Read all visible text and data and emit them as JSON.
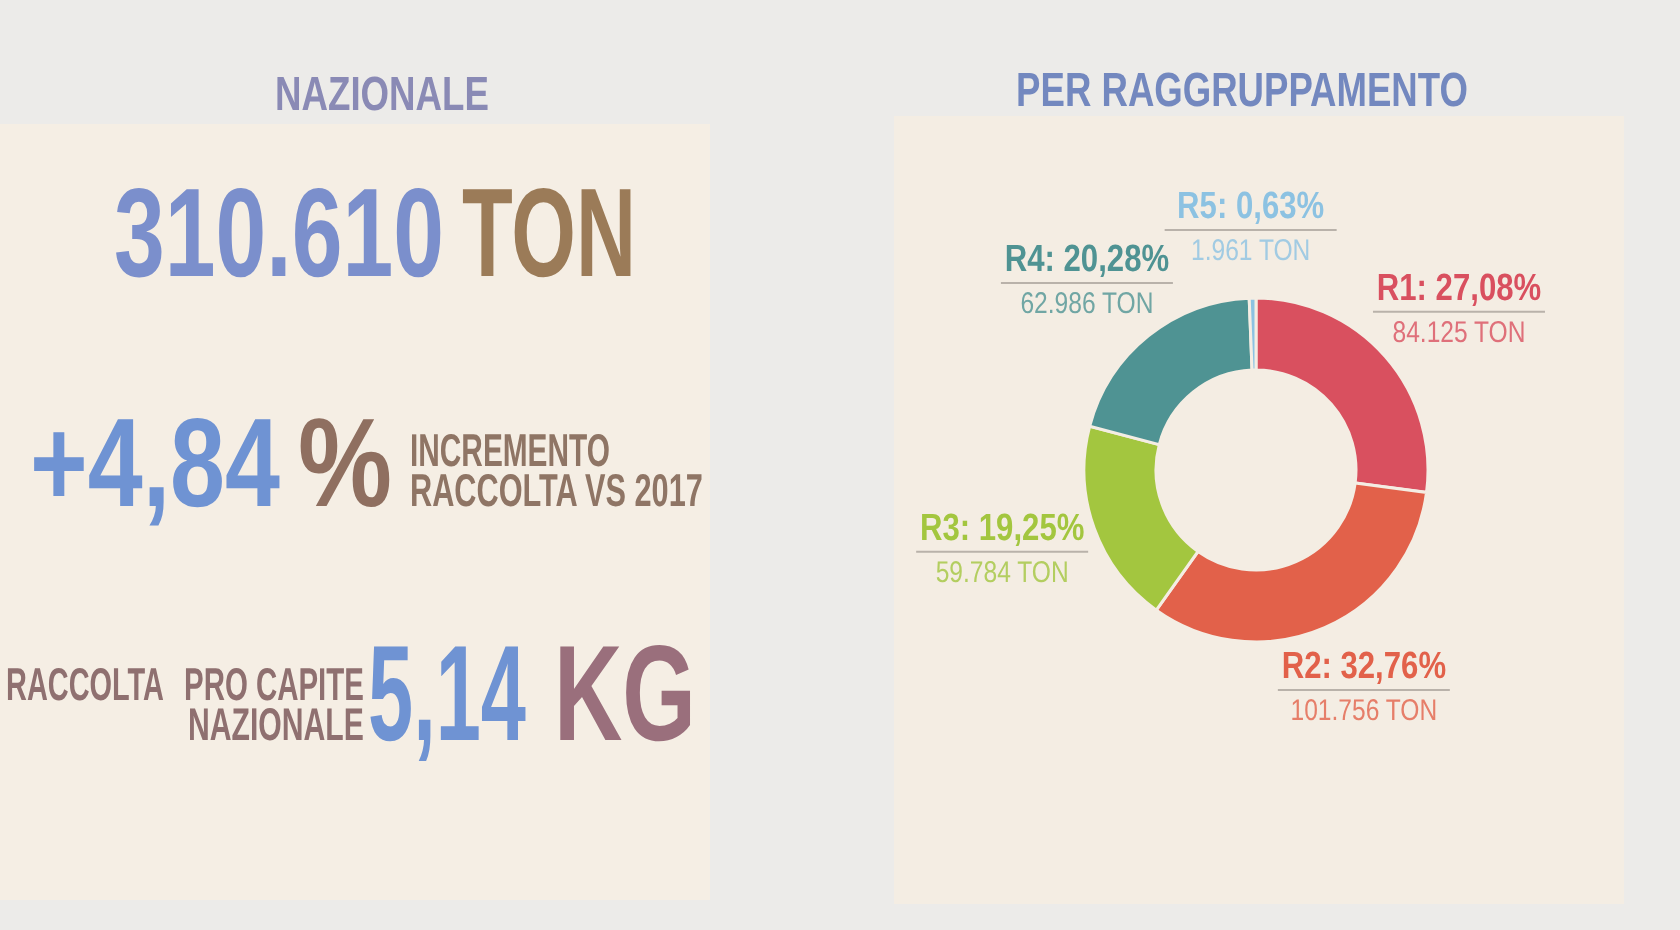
{
  "chart_data": [
    {
      "type": "other",
      "title": "NAZIONALE",
      "annotations": [
        "310.610",
        "TON",
        "+4,84",
        "%",
        "INCREMENTO",
        "RACCOLTA VS 2017",
        "RACCOLTA",
        "PRO CAPITE",
        "NAZIONALE",
        "5,14",
        "KG"
      ]
    },
    {
      "type": "donut",
      "title": "PER RAGGRUPPAMENTO",
      "categories": [
        "R1",
        "R2",
        "R3",
        "R4",
        "R5"
      ],
      "values": [
        27.08,
        32.76,
        19.25,
        20.28,
        0.63
      ],
      "colors": [
        "#d9505f",
        "#e2614a",
        "#a3c63f",
        "#4f9393",
        "#8cc2e2"
      ],
      "value_labels": [
        "27,08%",
        "32,76%",
        "19,25%",
        "20,28%",
        "0,63%"
      ],
      "annotations": [
        {
          "text": "84.125 TON",
          "x": "R1"
        },
        {
          "text": "101.756 TON",
          "x": "R2"
        },
        {
          "text": "59.784 TON",
          "x": "R3"
        },
        {
          "text": "62.986 TON",
          "x": "R4"
        },
        {
          "text": "1.961 TON",
          "x": "R5"
        }
      ]
    }
  ]
}
